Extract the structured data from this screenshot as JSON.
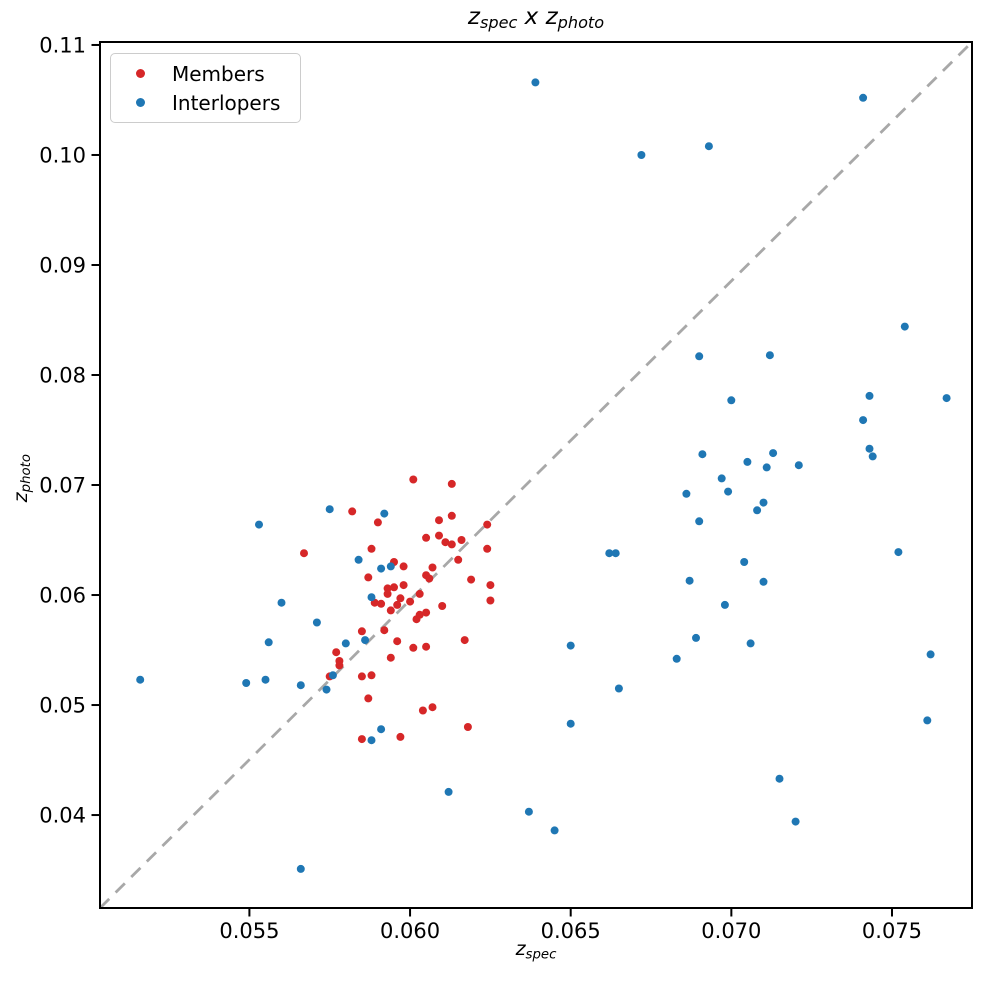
{
  "figure": {
    "title_text": "z_spec x z_photo",
    "title_parts": [
      {
        "t": "z",
        "s": "spec"
      },
      {
        "t": " x ",
        "s": ""
      },
      {
        "t": "z",
        "s": "photo"
      }
    ],
    "xlabel_parts": [
      {
        "t": "z",
        "s": "spec"
      }
    ],
    "ylabel_parts": [
      {
        "t": "z",
        "s": "photo"
      }
    ]
  },
  "legend": {
    "items": [
      {
        "label": "Members",
        "color": "#d62728"
      },
      {
        "label": "Interlopers",
        "color": "#1f77b4"
      }
    ]
  },
  "chart_data": {
    "type": "scatter",
    "title": "z_spec x z_photo",
    "xlabel": "z_spec",
    "ylabel": "z_photo",
    "xlim": [
      0.05035,
      0.07749
    ],
    "ylim": [
      0.03155,
      0.11027
    ],
    "x_ticks": [
      0.055,
      0.06,
      0.065,
      0.07,
      0.075
    ],
    "x_tick_labels": [
      "0.055",
      "0.060",
      "0.065",
      "0.070",
      "0.075"
    ],
    "y_ticks": [
      0.04,
      0.05,
      0.06,
      0.07,
      0.08,
      0.09,
      0.1,
      0.11
    ],
    "y_tick_labels": [
      "0.04",
      "0.05",
      "0.06",
      "0.07",
      "0.08",
      "0.09",
      "0.10",
      "0.11"
    ],
    "grid": false,
    "legend_position": "upper left",
    "identity_line": {
      "style": "dashed",
      "color": "#a8a8a8",
      "x": [
        0.05035,
        0.07749
      ],
      "y": [
        0.03155,
        0.11027
      ]
    },
    "marker": {
      "shape": "circle",
      "radius": 4
    },
    "series": [
      {
        "name": "Members",
        "color": "#d62728",
        "points": [
          [
            0.0601,
            0.0705
          ],
          [
            0.0613,
            0.0701
          ],
          [
            0.0582,
            0.0676
          ],
          [
            0.059,
            0.0666
          ],
          [
            0.0609,
            0.0668
          ],
          [
            0.0613,
            0.0672
          ],
          [
            0.0624,
            0.0664
          ],
          [
            0.0605,
            0.0652
          ],
          [
            0.0609,
            0.0654
          ],
          [
            0.0611,
            0.0648
          ],
          [
            0.0613,
            0.0646
          ],
          [
            0.0616,
            0.065
          ],
          [
            0.0624,
            0.0642
          ],
          [
            0.0567,
            0.0638
          ],
          [
            0.0588,
            0.0642
          ],
          [
            0.0595,
            0.063
          ],
          [
            0.0615,
            0.0632
          ],
          [
            0.0598,
            0.0626
          ],
          [
            0.0607,
            0.0625
          ],
          [
            0.0605,
            0.0618
          ],
          [
            0.0606,
            0.0615
          ],
          [
            0.0587,
            0.0616
          ],
          [
            0.0619,
            0.0614
          ],
          [
            0.0593,
            0.0606
          ],
          [
            0.0595,
            0.0607
          ],
          [
            0.0598,
            0.0609
          ],
          [
            0.0593,
            0.0601
          ],
          [
            0.0625,
            0.0609
          ],
          [
            0.0597,
            0.0597
          ],
          [
            0.0596,
            0.0591
          ],
          [
            0.0603,
            0.0601
          ],
          [
            0.06,
            0.0594
          ],
          [
            0.0589,
            0.0593
          ],
          [
            0.0591,
            0.0592
          ],
          [
            0.0594,
            0.0586
          ],
          [
            0.0603,
            0.0582
          ],
          [
            0.0605,
            0.0584
          ],
          [
            0.0602,
            0.0578
          ],
          [
            0.061,
            0.059
          ],
          [
            0.0625,
            0.0595
          ],
          [
            0.0617,
            0.0559
          ],
          [
            0.0585,
            0.0567
          ],
          [
            0.0592,
            0.0568
          ],
          [
            0.0605,
            0.0553
          ],
          [
            0.0601,
            0.0552
          ],
          [
            0.0596,
            0.0558
          ],
          [
            0.0594,
            0.0543
          ],
          [
            0.0577,
            0.0548
          ],
          [
            0.0578,
            0.054
          ],
          [
            0.0578,
            0.0536
          ],
          [
            0.0575,
            0.0526
          ],
          [
            0.0585,
            0.0526
          ],
          [
            0.0588,
            0.0527
          ],
          [
            0.0587,
            0.0506
          ],
          [
            0.0604,
            0.0495
          ],
          [
            0.0607,
            0.0498
          ],
          [
            0.0618,
            0.048
          ],
          [
            0.0585,
            0.0469
          ],
          [
            0.0597,
            0.0471
          ]
        ]
      },
      {
        "name": "Interlopers",
        "color": "#1f77b4",
        "points": [
          [
            0.0639,
            0.1066
          ],
          [
            0.0672,
            0.1
          ],
          [
            0.0693,
            0.1008
          ],
          [
            0.0741,
            0.1052
          ],
          [
            0.0754,
            0.0844
          ],
          [
            0.0712,
            0.0818
          ],
          [
            0.069,
            0.0817
          ],
          [
            0.07,
            0.0777
          ],
          [
            0.0743,
            0.0781
          ],
          [
            0.0767,
            0.0779
          ],
          [
            0.0741,
            0.0759
          ],
          [
            0.0743,
            0.0733
          ],
          [
            0.0744,
            0.0726
          ],
          [
            0.0691,
            0.0728
          ],
          [
            0.0713,
            0.0729
          ],
          [
            0.0705,
            0.0721
          ],
          [
            0.0711,
            0.0716
          ],
          [
            0.0721,
            0.0718
          ],
          [
            0.0697,
            0.0706
          ],
          [
            0.0699,
            0.0694
          ],
          [
            0.0686,
            0.0692
          ],
          [
            0.071,
            0.0684
          ],
          [
            0.0708,
            0.0677
          ],
          [
            0.069,
            0.0667
          ],
          [
            0.0687,
            0.0613
          ],
          [
            0.0662,
            0.0638
          ],
          [
            0.0664,
            0.0638
          ],
          [
            0.0752,
            0.0639
          ],
          [
            0.0704,
            0.063
          ],
          [
            0.071,
            0.0612
          ],
          [
            0.0698,
            0.0591
          ],
          [
            0.0689,
            0.0561
          ],
          [
            0.0706,
            0.0556
          ],
          [
            0.0762,
            0.0546
          ],
          [
            0.0761,
            0.0486
          ],
          [
            0.0683,
            0.0542
          ],
          [
            0.065,
            0.0554
          ],
          [
            0.0665,
            0.0515
          ],
          [
            0.065,
            0.0483
          ],
          [
            0.0715,
            0.0433
          ],
          [
            0.072,
            0.0394
          ],
          [
            0.0637,
            0.0403
          ],
          [
            0.0645,
            0.0386
          ],
          [
            0.0612,
            0.0421
          ],
          [
            0.0566,
            0.0351
          ],
          [
            0.0575,
            0.0678
          ],
          [
            0.0592,
            0.0674
          ],
          [
            0.0553,
            0.0664
          ],
          [
            0.0584,
            0.0632
          ],
          [
            0.0591,
            0.0624
          ],
          [
            0.0594,
            0.0626
          ],
          [
            0.0588,
            0.0598
          ],
          [
            0.056,
            0.0593
          ],
          [
            0.0571,
            0.0575
          ],
          [
            0.0556,
            0.0557
          ],
          [
            0.058,
            0.0556
          ],
          [
            0.0586,
            0.0559
          ],
          [
            0.0516,
            0.0523
          ],
          [
            0.0549,
            0.052
          ],
          [
            0.0555,
            0.0523
          ],
          [
            0.0566,
            0.0518
          ],
          [
            0.0574,
            0.0514
          ],
          [
            0.0576,
            0.0527
          ],
          [
            0.0591,
            0.0478
          ],
          [
            0.0588,
            0.0468
          ]
        ]
      }
    ]
  }
}
